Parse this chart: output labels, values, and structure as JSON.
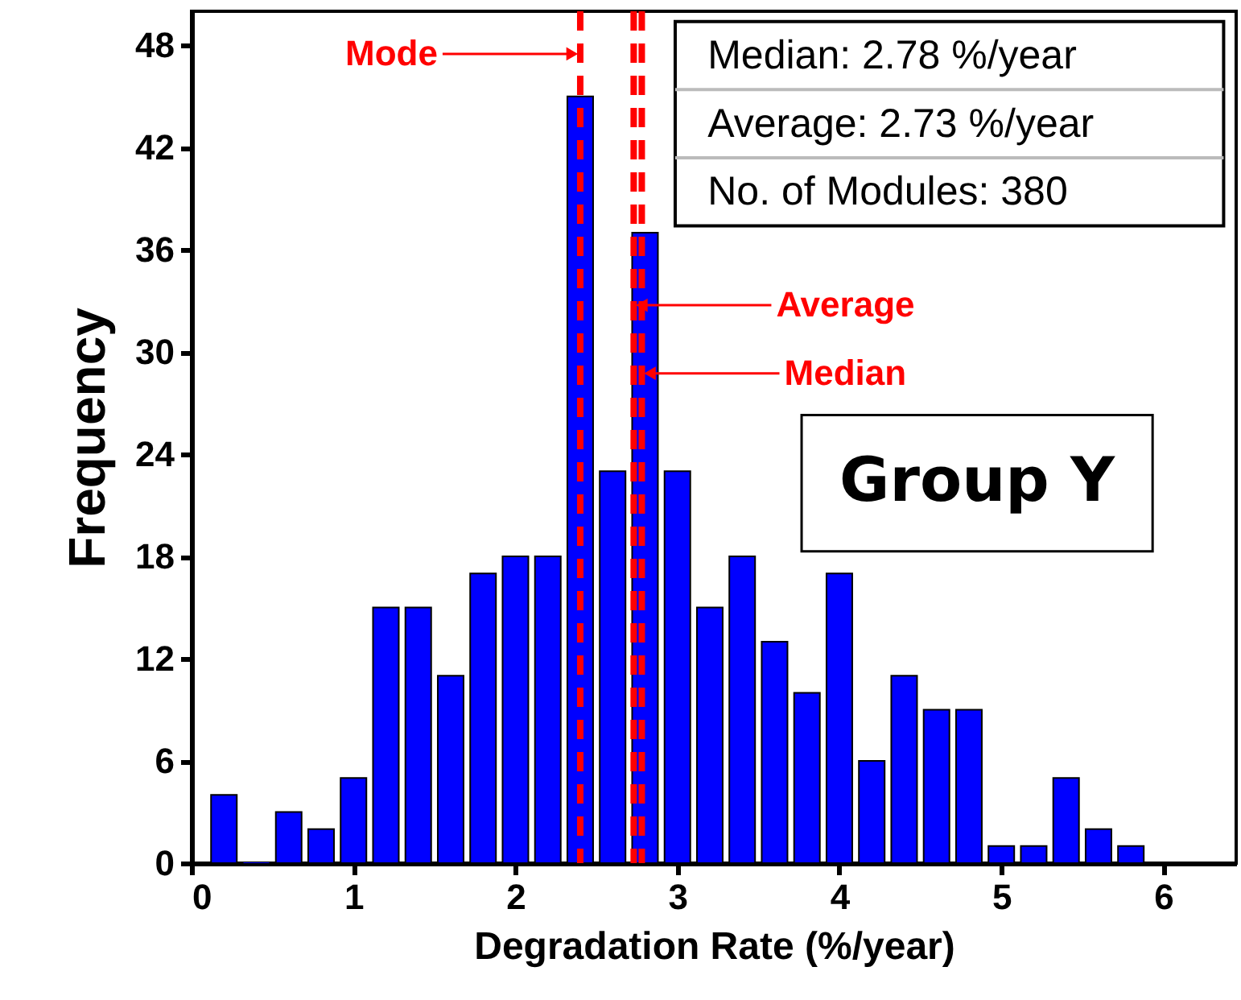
{
  "chart_data": {
    "type": "bar",
    "xlabel": "Degradation Rate (%/year)",
    "ylabel": "Frequency",
    "x": [
      0.2,
      0.4,
      0.6,
      0.8,
      1.0,
      1.2,
      1.4,
      1.6,
      1.8,
      2.0,
      2.2,
      2.4,
      2.6,
      2.8,
      3.0,
      3.2,
      3.4,
      3.6,
      3.8,
      4.0,
      4.2,
      4.4,
      4.6,
      4.8,
      5.0,
      5.2,
      5.4,
      5.6,
      5.8
    ],
    "values": [
      4,
      0,
      3,
      2,
      5,
      15,
      15,
      11,
      17,
      18,
      18,
      45,
      23,
      37,
      23,
      15,
      18,
      13,
      10,
      17,
      6,
      11,
      9,
      9,
      1,
      1,
      5,
      2,
      1
    ],
    "color": "#0000ff",
    "xlim": [
      0,
      6.45
    ],
    "xticks": [
      0,
      1,
      2,
      3,
      4,
      5,
      6
    ],
    "ylim": [
      0,
      50
    ],
    "yticks": [
      0,
      6,
      12,
      18,
      24,
      30,
      36,
      42,
      48
    ],
    "ref_lines": [
      {
        "axis": "x",
        "value": 2.4,
        "label": "Mode",
        "color": "#ff0000",
        "line_style": "dashed"
      },
      {
        "axis": "x",
        "value": 2.73,
        "label": "Average",
        "color": "#ff0000",
        "line_style": "dashed"
      },
      {
        "axis": "x",
        "value": 2.78,
        "label": "Median",
        "color": "#ff0000",
        "line_style": "dashed"
      }
    ],
    "annotations": [
      "Median: 2.78 %/year",
      "Average: 2.73 %/year",
      "No. of Modules: 380",
      "Group Y"
    ]
  }
}
